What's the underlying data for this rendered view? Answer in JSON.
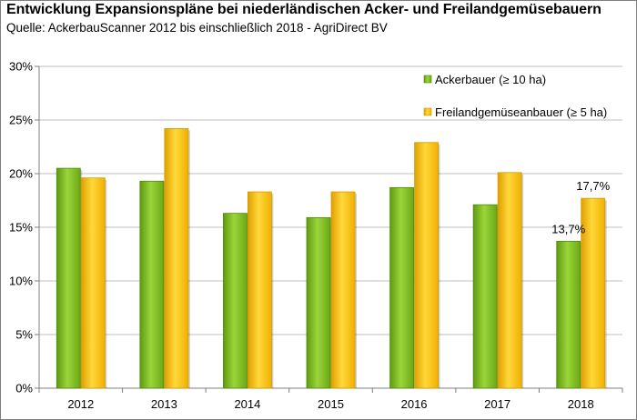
{
  "header": {
    "title": "Entwicklung Expansionspläne bei niederländischen Acker- und Freilandgemüsebauern",
    "subtitle": "Quelle: AckerbauScanner 2012 bis einschließlich 2018 - AgriDirect BV"
  },
  "chart_data": {
    "type": "bar",
    "categories": [
      "2012",
      "2013",
      "2014",
      "2015",
      "2016",
      "2017",
      "2018"
    ],
    "series": [
      {
        "name": "Ackerbauer (≥ 10 ha)",
        "values": [
          20.5,
          19.3,
          16.3,
          15.9,
          18.7,
          17.1,
          13.7
        ],
        "color": "#7fbd1e"
      },
      {
        "name": "Freilandgemüseanbauer (≥ 5 ha)",
        "values": [
          19.6,
          24.2,
          18.3,
          18.3,
          22.9,
          20.1,
          17.7
        ],
        "color": "#ffc000"
      }
    ],
    "ylim": [
      0,
      30
    ],
    "yticks": [
      "0%",
      "5%",
      "10%",
      "15%",
      "20%",
      "25%",
      "30%"
    ],
    "ytick_values": [
      0,
      5,
      10,
      15,
      20,
      25,
      30
    ],
    "grid": true,
    "legend_position": "top-right",
    "data_labels": [
      {
        "series": 0,
        "category": "2018",
        "text": "13,7%"
      },
      {
        "series": 1,
        "category": "2018",
        "text": "17,7%"
      }
    ]
  }
}
